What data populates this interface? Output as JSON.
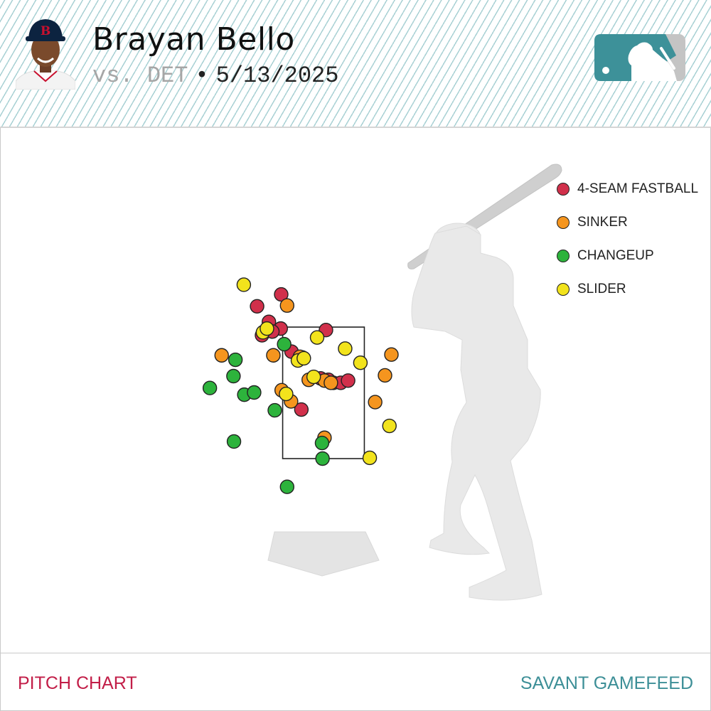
{
  "header": {
    "player_name": "Brayan Bello",
    "opponent": "vs. DET",
    "separator": "•",
    "date": "5/13/2025"
  },
  "icons": {
    "avatar": "player-headshot",
    "cap_logo": "B",
    "league_logo": "mlb-logo"
  },
  "colors": {
    "accent_teal": "#3d8f97",
    "accent_red": "#c21e48",
    "4-SEAM FASTBALL": "#d1304b",
    "SINKER": "#f5951e",
    "CHANGEUP": "#2db33c",
    "SLIDER": "#f2e31c"
  },
  "chart_data": {
    "type": "scatter",
    "title": "",
    "xlabel": "",
    "ylabel": "",
    "legend_position": "top-right",
    "grid": false,
    "series": [
      {
        "name": "4-SEAM FASTBALL",
        "color": "#d1304b",
        "points": [
          [
            -0.86,
            3.76
          ],
          [
            -1.35,
            3.6
          ],
          [
            -1.11,
            3.39
          ],
          [
            -0.87,
            3.3
          ],
          [
            0.05,
            3.28
          ],
          [
            -1.25,
            3.21
          ],
          [
            -1.04,
            3.26
          ],
          [
            -0.65,
            2.99
          ],
          [
            -0.43,
            2.91
          ],
          [
            -0.06,
            2.63
          ],
          [
            0.1,
            2.61
          ],
          [
            0.2,
            2.57
          ],
          [
            0.35,
            2.57
          ],
          [
            0.5,
            2.6
          ],
          [
            -0.45,
            2.21
          ]
        ]
      },
      {
        "name": "SINKER",
        "color": "#f5951e",
        "points": [
          [
            -0.74,
            3.61
          ],
          [
            -2.07,
            2.94
          ],
          [
            -1.02,
            2.94
          ],
          [
            -0.48,
            2.92
          ],
          [
            1.38,
            2.95
          ],
          [
            1.25,
            2.67
          ],
          [
            -0.85,
            2.47
          ],
          [
            -0.3,
            2.61
          ],
          [
            0.02,
            2.6
          ],
          [
            0.15,
            2.57
          ],
          [
            1.05,
            2.31
          ],
          [
            -0.66,
            2.32
          ],
          [
            0.02,
            1.83
          ]
        ]
      },
      {
        "name": "CHANGEUP",
        "color": "#2db33c",
        "points": [
          [
            -0.8,
            3.09
          ],
          [
            -1.79,
            2.88
          ],
          [
            -1.83,
            2.66
          ],
          [
            -2.31,
            2.5
          ],
          [
            -1.61,
            2.41
          ],
          [
            -1.41,
            2.44
          ],
          [
            -0.99,
            2.2
          ],
          [
            -1.82,
            1.78
          ],
          [
            -0.03,
            1.76
          ],
          [
            -0.02,
            1.55
          ],
          [
            -0.74,
            1.17
          ]
        ]
      },
      {
        "name": "SLIDER",
        "color": "#f2e31c",
        "points": [
          [
            -1.62,
            3.89
          ],
          [
            -1.23,
            3.25
          ],
          [
            -1.15,
            3.3
          ],
          [
            -0.13,
            3.18
          ],
          [
            0.44,
            3.03
          ],
          [
            -0.52,
            2.87
          ],
          [
            -0.4,
            2.9
          ],
          [
            -0.2,
            2.65
          ],
          [
            0.75,
            2.84
          ],
          [
            -0.76,
            2.42
          ],
          [
            1.34,
            1.99
          ],
          [
            0.94,
            1.56
          ]
        ]
      }
    ],
    "strike_zone": {
      "x": [
        -0.83,
        0.83
      ],
      "z": [
        1.55,
        3.32
      ]
    }
  },
  "footer": {
    "left_label": "PITCH CHART",
    "right_label": "SAVANT GAMEFEED"
  }
}
